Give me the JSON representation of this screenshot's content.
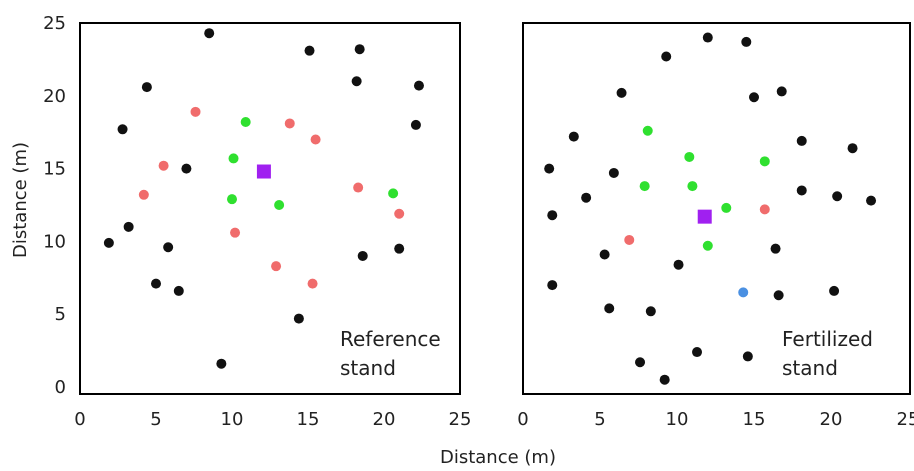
{
  "figure": {
    "xlabel": "Distance (m)",
    "ylabel": "Distance (m)"
  },
  "colors": {
    "black": "#111111",
    "red": "#f06c6c",
    "green": "#2fe02f",
    "blue": "#4a90e2",
    "purple": "#a020f0"
  },
  "chart_data": [
    {
      "type": "scatter",
      "annotation": [
        "Reference",
        "stand"
      ],
      "xlim": [
        0,
        25
      ],
      "ylim": [
        0,
        25
      ],
      "xticks": [
        "0",
        "5",
        "10",
        "15",
        "20",
        "25"
      ],
      "yticks": [
        "0",
        "5",
        "10",
        "15",
        "20",
        "25"
      ],
      "series": [
        {
          "color": "black",
          "marker": "circle",
          "points": [
            [
              8.5,
              24.3
            ],
            [
              15.1,
              23.1
            ],
            [
              18.4,
              23.2
            ],
            [
              4.4,
              20.6
            ],
            [
              18.2,
              21.0
            ],
            [
              22.3,
              20.7
            ],
            [
              2.8,
              17.7
            ],
            [
              22.1,
              18.0
            ],
            [
              7.0,
              15.0
            ],
            [
              3.2,
              11.0
            ],
            [
              1.9,
              9.9
            ],
            [
              5.8,
              9.6
            ],
            [
              18.6,
              9.0
            ],
            [
              21.0,
              9.5
            ],
            [
              5.0,
              7.1
            ],
            [
              6.5,
              6.6
            ],
            [
              14.4,
              4.7
            ],
            [
              9.3,
              1.6
            ]
          ]
        },
        {
          "color": "red",
          "marker": "circle",
          "points": [
            [
              7.6,
              18.9
            ],
            [
              13.8,
              18.1
            ],
            [
              15.5,
              17.0
            ],
            [
              5.5,
              15.2
            ],
            [
              4.2,
              13.2
            ],
            [
              18.3,
              13.7
            ],
            [
              21.0,
              11.9
            ],
            [
              10.2,
              10.6
            ],
            [
              12.9,
              8.3
            ],
            [
              15.3,
              7.1
            ]
          ]
        },
        {
          "color": "green",
          "marker": "circle",
          "points": [
            [
              10.9,
              18.2
            ],
            [
              10.1,
              15.7
            ],
            [
              10.0,
              12.9
            ],
            [
              13.1,
              12.5
            ],
            [
              20.6,
              13.3
            ]
          ]
        },
        {
          "color": "purple",
          "marker": "square",
          "points": [
            [
              12.1,
              14.8
            ]
          ]
        }
      ]
    },
    {
      "type": "scatter",
      "annotation": [
        "Fertilized",
        "stand"
      ],
      "xlim": [
        0,
        25
      ],
      "ylim": [
        0,
        25
      ],
      "xticks": [
        "0",
        "5",
        "10",
        "15",
        "20",
        "25"
      ],
      "yticks": [],
      "series": [
        {
          "color": "black",
          "marker": "circle",
          "points": [
            [
              12.0,
              24.0
            ],
            [
              14.5,
              23.7
            ],
            [
              9.3,
              22.7
            ],
            [
              6.4,
              20.2
            ],
            [
              15.0,
              19.9
            ],
            [
              16.8,
              20.3
            ],
            [
              3.3,
              17.2
            ],
            [
              18.1,
              16.9
            ],
            [
              21.4,
              16.4
            ],
            [
              1.7,
              15.0
            ],
            [
              5.9,
              14.7
            ],
            [
              18.1,
              13.5
            ],
            [
              20.4,
              13.1
            ],
            [
              22.6,
              12.8
            ],
            [
              4.1,
              13.0
            ],
            [
              1.9,
              11.8
            ],
            [
              5.3,
              9.1
            ],
            [
              16.4,
              9.5
            ],
            [
              10.1,
              8.4
            ],
            [
              1.9,
              7.0
            ],
            [
              20.2,
              6.6
            ],
            [
              16.6,
              6.3
            ],
            [
              5.6,
              5.4
            ],
            [
              8.3,
              5.2
            ],
            [
              11.3,
              2.4
            ],
            [
              14.6,
              2.1
            ],
            [
              7.6,
              1.7
            ],
            [
              9.2,
              0.5
            ]
          ]
        },
        {
          "color": "red",
          "marker": "circle",
          "points": [
            [
              6.9,
              10.1
            ],
            [
              15.7,
              12.2
            ]
          ]
        },
        {
          "color": "green",
          "marker": "circle",
          "points": [
            [
              8.1,
              17.6
            ],
            [
              10.8,
              15.8
            ],
            [
              15.7,
              15.5
            ],
            [
              7.9,
              13.8
            ],
            [
              11.0,
              13.8
            ],
            [
              13.2,
              12.3
            ],
            [
              12.0,
              9.7
            ]
          ]
        },
        {
          "color": "blue",
          "marker": "circle",
          "points": [
            [
              14.3,
              6.5
            ]
          ]
        },
        {
          "color": "purple",
          "marker": "square",
          "points": [
            [
              11.8,
              11.7
            ]
          ]
        }
      ]
    }
  ]
}
